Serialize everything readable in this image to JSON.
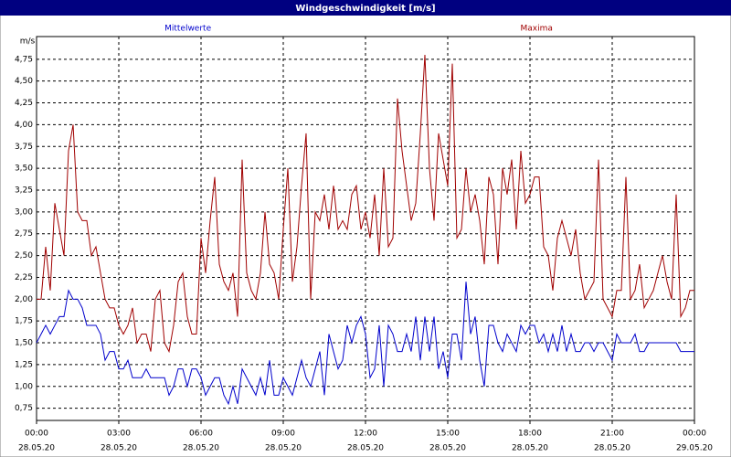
{
  "chart_data": {
    "type": "line",
    "title": "Windgeschwindigkeit [m/s]",
    "ylabel": "m/s",
    "grid": true,
    "xlim": [
      0,
      1440
    ],
    "ylim": [
      0.61,
      5.01
    ],
    "xticks": [
      {
        "value": 0,
        "label": "00:00"
      },
      {
        "value": 180,
        "label": "03:00"
      },
      {
        "value": 360,
        "label": "06:00"
      },
      {
        "value": 540,
        "label": "09:00"
      },
      {
        "value": 720,
        "label": "12:00"
      },
      {
        "value": 900,
        "label": "15:00"
      },
      {
        "value": 1080,
        "label": "18:00"
      },
      {
        "value": 1260,
        "label": "21:00"
      },
      {
        "value": 1440,
        "label": "00:00"
      }
    ],
    "xtick_dates": [
      "28.05.20",
      "28.05.20",
      "28.05.20",
      "28.05.20",
      "28.05.20",
      "28.05.20",
      "28.05.20",
      "28.05.20",
      "29.05.20"
    ],
    "yticks": [
      {
        "value": 0.75,
        "label": "0,75"
      },
      {
        "value": 1.0,
        "label": "1,00"
      },
      {
        "value": 1.25,
        "label": "1,25"
      },
      {
        "value": 1.5,
        "label": "1,50"
      },
      {
        "value": 1.75,
        "label": "1,75"
      },
      {
        "value": 2.0,
        "label": "2,00"
      },
      {
        "value": 2.25,
        "label": "2,25"
      },
      {
        "value": 2.5,
        "label": "2,50"
      },
      {
        "value": 2.75,
        "label": "2,75"
      },
      {
        "value": 3.0,
        "label": "3,00"
      },
      {
        "value": 3.25,
        "label": "3,25"
      },
      {
        "value": 3.5,
        "label": "3,50"
      },
      {
        "value": 3.75,
        "label": "3,75"
      },
      {
        "value": 4.0,
        "label": "4,00"
      },
      {
        "value": 4.25,
        "label": "4,25"
      },
      {
        "value": 4.5,
        "label": "4,50"
      },
      {
        "value": 4.75,
        "label": "4,75"
      }
    ],
    "x": [
      0,
      10,
      20,
      30,
      40,
      50,
      60,
      70,
      80,
      90,
      100,
      110,
      120,
      130,
      140,
      150,
      160,
      170,
      180,
      190,
      200,
      210,
      220,
      230,
      240,
      250,
      260,
      270,
      280,
      290,
      300,
      310,
      320,
      330,
      340,
      350,
      360,
      370,
      380,
      390,
      400,
      410,
      420,
      430,
      440,
      450,
      460,
      470,
      480,
      490,
      500,
      510,
      520,
      530,
      540,
      550,
      560,
      570,
      580,
      590,
      600,
      610,
      620,
      630,
      640,
      650,
      660,
      670,
      680,
      690,
      700,
      710,
      720,
      730,
      740,
      750,
      760,
      770,
      780,
      790,
      800,
      810,
      820,
      830,
      840,
      850,
      860,
      870,
      880,
      890,
      900,
      910,
      920,
      930,
      940,
      950,
      960,
      970,
      980,
      990,
      1000,
      1010,
      1020,
      1030,
      1040,
      1050,
      1060,
      1070,
      1080,
      1090,
      1100,
      1110,
      1120,
      1130,
      1140,
      1150,
      1160,
      1170,
      1180,
      1190,
      1200,
      1210,
      1220,
      1230,
      1240,
      1250,
      1260,
      1270,
      1280,
      1290,
      1300,
      1310,
      1320,
      1330,
      1340,
      1350,
      1360,
      1370,
      1380,
      1390,
      1400,
      1410,
      1420,
      1430,
      1440
    ],
    "series": [
      {
        "name": "Mittelwerte",
        "color": "#0000cc",
        "values": [
          1.5,
          1.6,
          1.7,
          1.6,
          1.7,
          1.8,
          1.8,
          2.1,
          2.0,
          2.0,
          1.9,
          1.7,
          1.7,
          1.7,
          1.6,
          1.3,
          1.4,
          1.4,
          1.2,
          1.2,
          1.3,
          1.1,
          1.1,
          1.1,
          1.2,
          1.1,
          1.1,
          1.1,
          1.1,
          0.9,
          1.0,
          1.2,
          1.2,
          1.0,
          1.2,
          1.2,
          1.1,
          0.9,
          1.0,
          1.1,
          1.1,
          0.9,
          0.8,
          1.0,
          0.8,
          1.2,
          1.1,
          1.0,
          0.9,
          1.1,
          0.9,
          1.3,
          0.9,
          0.9,
          1.1,
          1.0,
          0.9,
          1.1,
          1.3,
          1.1,
          1.0,
          1.2,
          1.4,
          0.9,
          1.6,
          1.4,
          1.2,
          1.3,
          1.7,
          1.5,
          1.7,
          1.8,
          1.6,
          1.1,
          1.2,
          1.7,
          1.0,
          1.7,
          1.6,
          1.4,
          1.4,
          1.6,
          1.4,
          1.8,
          1.3,
          1.8,
          1.4,
          1.8,
          1.2,
          1.4,
          1.1,
          1.6,
          1.6,
          1.3,
          2.2,
          1.6,
          1.8,
          1.3,
          1.0,
          1.7,
          1.7,
          1.5,
          1.4,
          1.6,
          1.5,
          1.4,
          1.7,
          1.6,
          1.7,
          1.7,
          1.5,
          1.6,
          1.4,
          1.6,
          1.4,
          1.7,
          1.4,
          1.6,
          1.4,
          1.4,
          1.5,
          1.5,
          1.4,
          1.5,
          1.5,
          1.4,
          1.3,
          1.6,
          1.5,
          1.5,
          1.5,
          1.6,
          1.4,
          1.4,
          1.5,
          1.5,
          1.5,
          1.5,
          1.5,
          1.5,
          1.5,
          1.4,
          1.4,
          1.4,
          1.4
        ]
      },
      {
        "name": "Maxima",
        "color": "#a00000",
        "values": [
          2.0,
          2.0,
          2.6,
          2.1,
          3.1,
          2.8,
          2.5,
          3.7,
          4.0,
          3.0,
          2.9,
          2.9,
          2.5,
          2.6,
          2.3,
          2.0,
          1.9,
          1.9,
          1.7,
          1.6,
          1.7,
          1.9,
          1.5,
          1.6,
          1.6,
          1.4,
          2.0,
          2.1,
          1.5,
          1.4,
          1.7,
          2.2,
          2.3,
          1.8,
          1.6,
          1.6,
          2.7,
          2.3,
          2.9,
          3.4,
          2.4,
          2.2,
          2.1,
          2.3,
          1.8,
          3.6,
          2.3,
          2.1,
          2.0,
          2.3,
          3.0,
          2.4,
          2.3,
          2.0,
          2.8,
          3.5,
          2.2,
          2.6,
          3.3,
          3.9,
          2.0,
          3.0,
          2.9,
          3.2,
          2.8,
          3.3,
          2.8,
          2.9,
          2.8,
          3.2,
          3.3,
          2.8,
          3.0,
          2.7,
          3.2,
          2.5,
          3.5,
          2.6,
          2.7,
          4.3,
          3.7,
          3.3,
          2.9,
          3.1,
          3.9,
          4.8,
          3.5,
          2.9,
          3.9,
          3.6,
          3.3,
          4.7,
          2.7,
          2.8,
          3.5,
          3.0,
          3.2,
          2.9,
          2.4,
          3.4,
          3.2,
          2.4,
          3.5,
          3.2,
          3.6,
          2.8,
          3.7,
          3.1,
          3.2,
          3.4,
          3.4,
          2.6,
          2.5,
          2.1,
          2.7,
          2.9,
          2.7,
          2.5,
          2.8,
          2.3,
          2.0,
          2.1,
          2.2,
          3.6,
          2.0,
          1.9,
          1.8,
          2.1,
          2.1,
          3.4,
          2.0,
          2.1,
          2.4,
          1.9,
          2.0,
          2.1,
          2.3,
          2.5,
          2.2,
          2.0,
          3.2,
          1.8,
          1.9,
          2.1,
          2.1
        ]
      }
    ]
  }
}
